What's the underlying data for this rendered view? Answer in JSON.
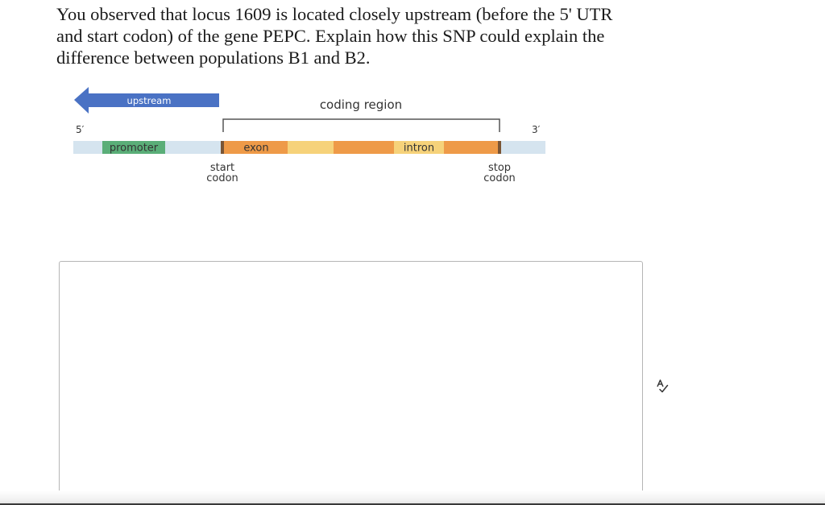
{
  "question": {
    "text": "You observed that locus 1609 is located closely upstream (before the 5' UTR and start codon) of the gene PEPC. Explain how this SNP could explain the difference between populations B1 and B2."
  },
  "diagram": {
    "upstream_label": "upstream",
    "coding_region_label": "coding region",
    "five_prime_label": "5′",
    "three_prime_label": "3′",
    "promoter_label": "promoter",
    "exon_label": "exon",
    "intron_label": "intron",
    "start_codon_line1": "start",
    "start_codon_line2": "codon",
    "stop_codon_line1": "stop",
    "stop_codon_line2": "codon",
    "colors": {
      "arrow": "#4a72c4",
      "strand": "#d5e4ef",
      "promoter": "#5aae78",
      "exon": "#ee9a48",
      "intron": "#f6d27a",
      "codon_marker": "#7a5535",
      "bracket": "#555555"
    }
  },
  "answer": {
    "value": ""
  },
  "toolbar": {
    "spellcheck_icon": "spellcheck-icon"
  }
}
